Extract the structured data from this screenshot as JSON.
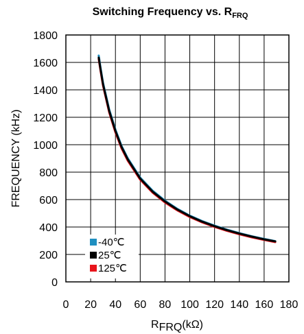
{
  "chart_data": {
    "type": "line",
    "title_main": "Switching Frequency vs. R",
    "title_sub": "FRQ",
    "xlabel_main": "R",
    "xlabel_sub": "FRQ",
    "xlabel_unit": "(kΩ)",
    "ylabel": "FREQUENCY (kHz)",
    "xlim": [
      0,
      180
    ],
    "ylim": [
      0,
      1800
    ],
    "x_ticks": [
      "0",
      "20",
      "40",
      "60",
      "80",
      "100",
      "120",
      "140",
      "160",
      "180"
    ],
    "y_ticks": [
      "0",
      "200",
      "400",
      "600",
      "800",
      "1000",
      "1200",
      "1400",
      "1600",
      "1800"
    ],
    "grid": true,
    "legend_position": "bottom-left",
    "series": [
      {
        "name": "-40℃",
        "color": "#1f8fc0",
        "x": [
          26.5,
          28,
          30,
          35,
          40,
          45,
          50,
          60,
          70,
          80,
          90,
          100,
          110,
          120,
          130,
          140,
          150,
          160,
          169
        ],
        "y": [
          1650,
          1560,
          1450,
          1255,
          1110,
          990,
          900,
          760,
          665,
          592,
          532,
          483,
          443,
          410,
          381,
          355,
          333,
          313,
          297
        ]
      },
      {
        "name": "25℃",
        "color": "#000000",
        "x": [
          26.5,
          28,
          30,
          35,
          40,
          45,
          50,
          60,
          70,
          80,
          90,
          100,
          110,
          120,
          130,
          140,
          150,
          160,
          169
        ],
        "y": [
          1635,
          1548,
          1440,
          1245,
          1100,
          982,
          892,
          753,
          658,
          586,
          527,
          479,
          439,
          406,
          377,
          352,
          330,
          310,
          295
        ]
      },
      {
        "name": "125℃",
        "color": "#e8141b",
        "x": [
          26.5,
          28,
          30,
          35,
          40,
          45,
          50,
          60,
          70,
          80,
          90,
          100,
          110,
          120,
          130,
          140,
          150,
          160,
          169
        ],
        "y": [
          1625,
          1538,
          1430,
          1235,
          1090,
          972,
          883,
          745,
          651,
          579,
          521,
          473,
          434,
          401,
          372,
          347,
          325,
          306,
          290
        ]
      }
    ]
  }
}
